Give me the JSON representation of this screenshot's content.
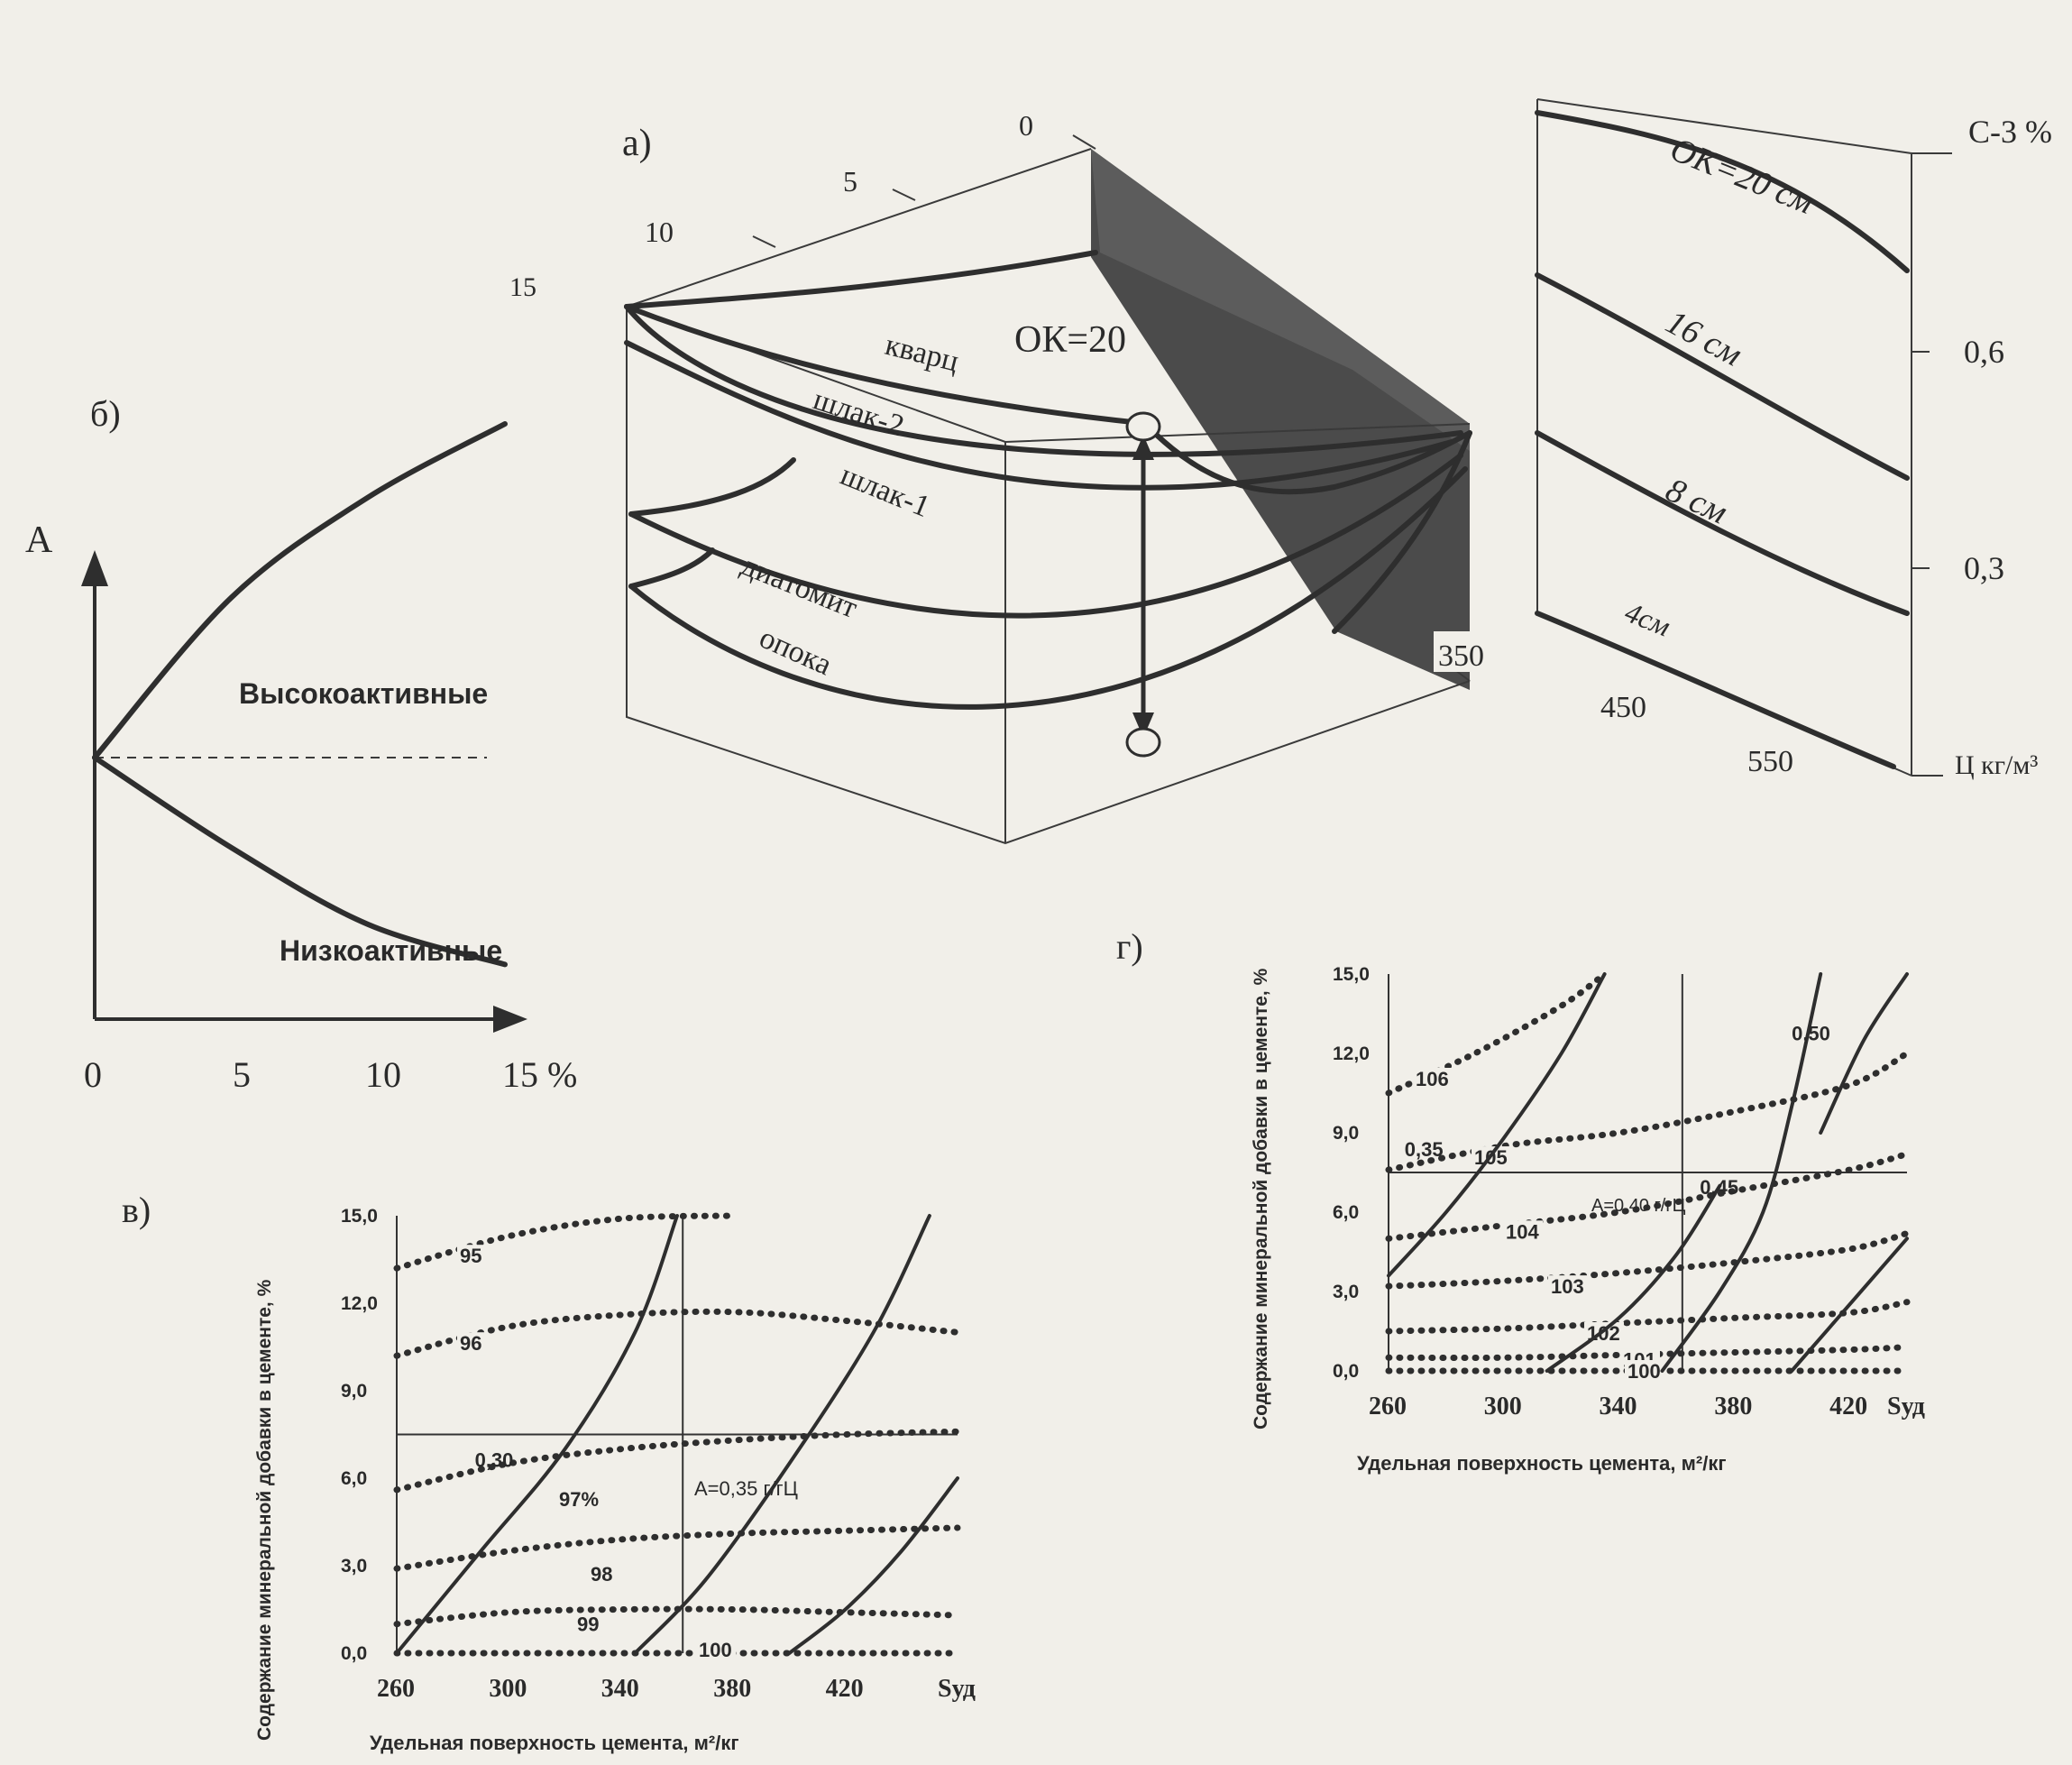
{
  "panel_labels": {
    "a": "а)",
    "b": "б)",
    "v": "в)",
    "g": "г)"
  },
  "chart_data": [
    {
      "id": "a",
      "type": "line",
      "title": "",
      "depth_ticks": [
        "0",
        "5",
        "10",
        "15"
      ],
      "front_ticks": [
        "350",
        "450",
        "550"
      ],
      "annotation": "ОК=20",
      "series": [
        {
          "name": "кварц"
        },
        {
          "name": "шлак-2"
        },
        {
          "name": "шлак-1"
        },
        {
          "name": "диатомит"
        },
        {
          "name": "опока"
        }
      ]
    },
    {
      "id": "a-side",
      "type": "line",
      "ylabel": "С-3 %",
      "y_ticks": [
        "0,6",
        "0,3"
      ],
      "xlabel": "Ц кг/м³",
      "series": [
        {
          "name": "ОК=20 см"
        },
        {
          "name": "16 см"
        },
        {
          "name": "8 см"
        },
        {
          "name": "4см"
        }
      ]
    },
    {
      "id": "b",
      "type": "line",
      "ylabel": "А",
      "x_ticks": [
        "0",
        "5",
        "10",
        "15 %"
      ],
      "xlim": [
        0,
        15
      ],
      "labels": {
        "high": "Высокоактивные",
        "low": "Низкоактивные"
      },
      "series": [
        {
          "name": "Высокоактивные",
          "x": [
            0,
            5,
            10,
            15
          ],
          "y": [
            0,
            0.48,
            0.78,
            1.0
          ]
        },
        {
          "name": "Низкоактивные",
          "x": [
            0,
            5,
            10,
            15
          ],
          "y": [
            0,
            -0.27,
            -0.5,
            -0.62
          ]
        }
      ]
    },
    {
      "id": "v",
      "type": "line",
      "xlabel": "Удельная поверхность цемента, м²/кг",
      "ylabel": "Содержание минеральной добавки в цементе, %",
      "x_ticks": [
        "260",
        "300",
        "340",
        "380",
        "420",
        "Sуд"
      ],
      "y_ticks": [
        "0,0",
        "3,0",
        "6,0",
        "9,0",
        "12,0",
        "15,0"
      ],
      "xlim": [
        260,
        460
      ],
      "ylim": [
        0,
        15
      ],
      "strength_label": "А=0,35 г/гЦ",
      "strength_isolines": [
        {
          "label": "95",
          "x": [
            260,
            300,
            340,
            380
          ],
          "y": [
            13.2,
            14.3,
            14.9,
            15.0
          ]
        },
        {
          "label": "96",
          "x": [
            260,
            300,
            340,
            380,
            420,
            460
          ],
          "y": [
            10.2,
            11.2,
            11.6,
            11.7,
            11.4,
            11.0
          ]
        },
        {
          "label": "97%",
          "x": [
            260,
            300,
            340,
            380,
            420,
            460
          ],
          "y": [
            5.6,
            6.5,
            7.0,
            7.3,
            7.5,
            7.6
          ]
        },
        {
          "label": "98",
          "x": [
            260,
            300,
            340,
            380,
            420,
            460
          ],
          "y": [
            2.9,
            3.5,
            3.9,
            4.1,
            4.2,
            4.3
          ]
        },
        {
          "label": "99",
          "x": [
            260,
            300,
            340,
            380,
            420,
            460
          ],
          "y": [
            1.0,
            1.4,
            1.5,
            1.5,
            1.4,
            1.3
          ]
        },
        {
          "label": "100",
          "x": [
            260,
            300,
            340,
            380,
            420,
            460
          ],
          "y": [
            0.0,
            0.0,
            0.0,
            0.0,
            0.0,
            0.0
          ]
        }
      ],
      "wc_isolines": [
        {
          "label": "0,30",
          "x": [
            260,
            290,
            320,
            345,
            360
          ],
          "y": [
            0.0,
            3.5,
            7.0,
            11.0,
            15.0
          ]
        },
        {
          "label": "",
          "x": [
            345,
            370,
            400,
            430,
            450
          ],
          "y": [
            0.0,
            2.5,
            6.5,
            11.0,
            15.0
          ]
        },
        {
          "label": "",
          "x": [
            400,
            420,
            440,
            460
          ],
          "y": [
            0.0,
            1.5,
            3.5,
            6.0
          ]
        }
      ]
    },
    {
      "id": "g",
      "type": "line",
      "xlabel": "Удельная поверхность цемента, м²/кг",
      "ylabel": "Содержание минеральной добавки в цементе, %",
      "x_ticks": [
        "260",
        "300",
        "340",
        "380",
        "420",
        "Sуд"
      ],
      "y_ticks": [
        "0,0",
        "3,0",
        "6,0",
        "9,0",
        "12,0",
        "15,0"
      ],
      "xlim": [
        260,
        440
      ],
      "ylim": [
        0,
        15
      ],
      "strength_label": "А=0,40 г/гЦ",
      "strength_isolines": [
        {
          "label": "106",
          "x": [
            260,
            290,
            320,
            335
          ],
          "y": [
            10.5,
            12.0,
            13.8,
            15.0
          ]
        },
        {
          "label": "105",
          "x": [
            260,
            300,
            340,
            380,
            420,
            440
          ],
          "y": [
            7.6,
            8.5,
            9.0,
            9.8,
            10.8,
            12.0
          ]
        },
        {
          "label": "104",
          "x": [
            260,
            300,
            340,
            380,
            420,
            440
          ],
          "y": [
            5.0,
            5.5,
            6.0,
            6.8,
            7.6,
            8.2
          ]
        },
        {
          "label": "103",
          "x": [
            260,
            300,
            340,
            380,
            420,
            440
          ],
          "y": [
            3.2,
            3.4,
            3.7,
            4.1,
            4.6,
            5.2
          ]
        },
        {
          "label": "102",
          "x": [
            260,
            300,
            340,
            380,
            420,
            440
          ],
          "y": [
            1.5,
            1.6,
            1.8,
            2.0,
            2.2,
            2.6
          ]
        },
        {
          "label": "101",
          "x": [
            260,
            300,
            340,
            380,
            420,
            440
          ],
          "y": [
            0.5,
            0.5,
            0.6,
            0.7,
            0.8,
            0.9
          ]
        },
        {
          "label": "100",
          "x": [
            260,
            300,
            340,
            380,
            420,
            440
          ],
          "y": [
            0.0,
            0.0,
            0.0,
            0.0,
            0.0,
            0.0
          ]
        }
      ],
      "wc_isolines": [
        {
          "label": "0,35",
          "x": [
            260,
            280,
            300,
            320,
            335
          ],
          "y": [
            3.6,
            6.0,
            8.8,
            12.0,
            15.0
          ]
        },
        {
          "label": "",
          "x": [
            315,
            340,
            360,
            375
          ],
          "y": [
            0.0,
            2.0,
            4.4,
            7.0
          ]
        },
        {
          "label": "0,45",
          "x": [
            355,
            375,
            390,
            400,
            410
          ],
          "y": [
            0.0,
            3.0,
            6.0,
            10.0,
            15.0
          ]
        },
        {
          "label": "",
          "x": [
            400,
            420,
            440
          ],
          "y": [
            0.0,
            2.5,
            5.0
          ]
        },
        {
          "label": "0,50",
          "x": [
            410,
            425,
            440
          ],
          "y": [
            9.0,
            12.5,
            15.0
          ]
        }
      ]
    }
  ]
}
